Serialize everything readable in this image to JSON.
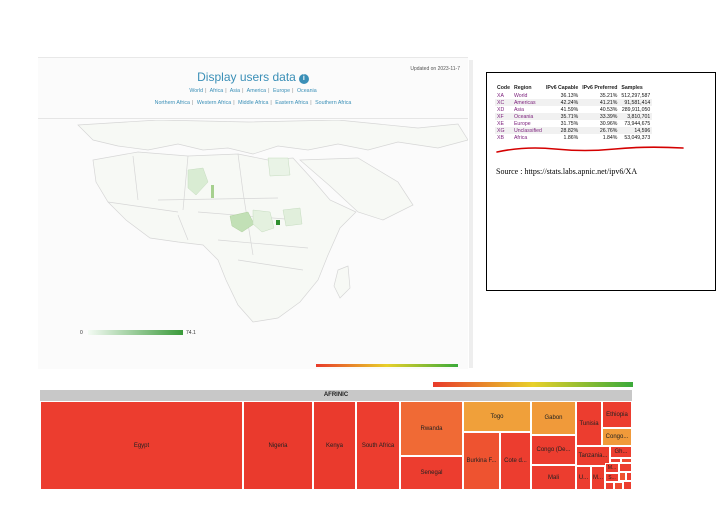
{
  "map_panel": {
    "updated": "Updated on 2023-11-7",
    "title": "Display users data",
    "info_icon": "info-icon",
    "regions": [
      "World",
      "Africa",
      "Asia",
      "America",
      "Europe",
      "Oceania"
    ],
    "subregions": [
      "Northern Africa",
      "Western Africa",
      "Middle Africa",
      "Eastern Africa",
      "Southern Africa"
    ],
    "legend_min": "0",
    "legend_max": "74.1"
  },
  "table": {
    "headers": [
      "Code",
      "Region",
      "IPv6 Capable",
      "IPv6 Preferred",
      "Samples"
    ],
    "rows": [
      {
        "code": "XA",
        "region": "World",
        "capable": "36.13%",
        "preferred": "35.21%",
        "samples": "512,297,587"
      },
      {
        "code": "XC",
        "region": "Americas",
        "capable": "42.24%",
        "preferred": "41.21%",
        "samples": "91,581,414"
      },
      {
        "code": "XD",
        "region": "Asia",
        "capable": "41.59%",
        "preferred": "40.53%",
        "samples": "289,911,050"
      },
      {
        "code": "XF",
        "region": "Oceania",
        "capable": "35.71%",
        "preferred": "33.39%",
        "samples": "3,810,701"
      },
      {
        "code": "XE",
        "region": "Europe",
        "capable": "31.75%",
        "preferred": "30.96%",
        "samples": "73,944,675"
      },
      {
        "code": "XG",
        "region": "Unclassified",
        "capable": "28.82%",
        "preferred": "26.76%",
        "samples": "14,596"
      },
      {
        "code": "XB",
        "region": "Africa",
        "capable": "1.86%",
        "preferred": "1.84%",
        "samples": "53,049,373"
      }
    ],
    "source": "Source : https://stats.labs.apnic.net/ipv6/XA"
  },
  "treemap": {
    "title": "AFRINIC",
    "cells": [
      {
        "label": "Egypt",
        "color": "#ec3d2f"
      },
      {
        "label": "Nigeria",
        "color": "#ea3a2d"
      },
      {
        "label": "Kenya",
        "color": "#ea3a2d"
      },
      {
        "label": "South Africa",
        "color": "#ec3d2f"
      },
      {
        "label": "Rwanda",
        "color": "#f06a35"
      },
      {
        "label": "Senegal",
        "color": "#ec3d2f"
      },
      {
        "label": "Togo",
        "color": "#f0a03a"
      },
      {
        "label": "Burkina F...",
        "color": "#ee5330"
      },
      {
        "label": "Cote d...",
        "color": "#ec3d2f"
      },
      {
        "label": "Gabon",
        "color": "#f09a3a"
      },
      {
        "label": "Congo (De...",
        "color": "#ec3d2f"
      },
      {
        "label": "Mali",
        "color": "#ec3d2f"
      },
      {
        "label": "Tunisia",
        "color": "#ec3d2f"
      },
      {
        "label": "Ethiopia",
        "color": "#ec3d2f"
      },
      {
        "label": "Congo...",
        "color": "#f09a3a"
      },
      {
        "label": "Tanzania...",
        "color": "#ec3d2f"
      },
      {
        "label": "Gh...",
        "color": "#ec3d2f"
      },
      {
        "label": "U...",
        "color": "#ec3d2f"
      },
      {
        "label": "M...",
        "color": "#ec3d2f"
      },
      {
        "label": "M...",
        "color": "#ec3d2f"
      },
      {
        "label": "S...",
        "color": "#ec3d2f"
      }
    ]
  }
}
